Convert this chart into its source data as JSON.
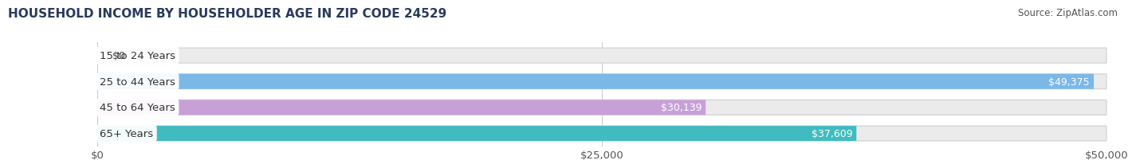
{
  "title": "HOUSEHOLD INCOME BY HOUSEHOLDER AGE IN ZIP CODE 24529",
  "source": "Source: ZipAtlas.com",
  "categories": [
    "15 to 24 Years",
    "25 to 44 Years",
    "45 to 64 Years",
    "65+ Years"
  ],
  "values": [
    0,
    49375,
    30139,
    37609
  ],
  "bar_colors": [
    "#f0a0a8",
    "#7ab8e8",
    "#c8a0d8",
    "#40bcc0"
  ],
  "bar_bg_color": "#ebebeb",
  "background_color": "#ffffff",
  "xlim": [
    0,
    50000
  ],
  "xticks": [
    0,
    25000,
    50000
  ],
  "xtick_labels": [
    "$0",
    "$25,000",
    "$50,000"
  ],
  "value_labels": [
    "$0",
    "$49,375",
    "$30,139",
    "$37,609"
  ],
  "title_fontsize": 11,
  "source_fontsize": 8.5,
  "tick_fontsize": 9.5,
  "bar_label_fontsize": 9,
  "category_fontsize": 9.5,
  "bar_height": 0.58,
  "fig_bg_color": "#ffffff",
  "title_color": "#2a3a5c",
  "source_color": "#555555",
  "grid_color": "#cccccc",
  "tick_color": "#555555"
}
